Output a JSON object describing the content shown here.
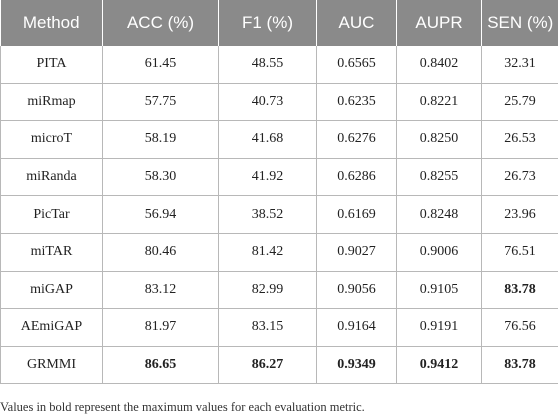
{
  "table": {
    "headers": [
      "Method",
      "ACC (%)",
      "F1 (%)",
      "AUC",
      "AUPR",
      "SEN (%)"
    ],
    "rows": [
      {
        "cells": [
          "PITA",
          "61.45",
          "48.55",
          "0.6565",
          "0.8402",
          "32.31"
        ],
        "bold": [
          false,
          false,
          false,
          false,
          false,
          false
        ]
      },
      {
        "cells": [
          "miRmap",
          "57.75",
          "40.73",
          "0.6235",
          "0.8221",
          "25.79"
        ],
        "bold": [
          false,
          false,
          false,
          false,
          false,
          false
        ]
      },
      {
        "cells": [
          "microT",
          "58.19",
          "41.68",
          "0.6276",
          "0.8250",
          "26.53"
        ],
        "bold": [
          false,
          false,
          false,
          false,
          false,
          false
        ]
      },
      {
        "cells": [
          "miRanda",
          "58.30",
          "41.92",
          "0.6286",
          "0.8255",
          "26.73"
        ],
        "bold": [
          false,
          false,
          false,
          false,
          false,
          false
        ]
      },
      {
        "cells": [
          "PicTar",
          "56.94",
          "38.52",
          "0.6169",
          "0.8248",
          "23.96"
        ],
        "bold": [
          false,
          false,
          false,
          false,
          false,
          false
        ]
      },
      {
        "cells": [
          "miTAR",
          "80.46",
          "81.42",
          "0.9027",
          "0.9006",
          "76.51"
        ],
        "bold": [
          false,
          false,
          false,
          false,
          false,
          false
        ]
      },
      {
        "cells": [
          "miGAP",
          "83.12",
          "82.99",
          "0.9056",
          "0.9105",
          "83.78"
        ],
        "bold": [
          false,
          false,
          false,
          false,
          false,
          true
        ]
      },
      {
        "cells": [
          "AEmiGAP",
          "81.97",
          "83.15",
          "0.9164",
          "0.9191",
          "76.56"
        ],
        "bold": [
          false,
          false,
          false,
          false,
          false,
          false
        ]
      },
      {
        "cells": [
          "GRMMI",
          "86.65",
          "86.27",
          "0.9349",
          "0.9412",
          "83.78"
        ],
        "bold": [
          false,
          true,
          true,
          true,
          true,
          true
        ]
      }
    ]
  },
  "footnote": "Values in bold represent the maximum values for each evaluation metric.",
  "colors": {
    "header_bg": "#8a8a8a",
    "header_text": "#ffffff",
    "grid": "#b8b8b8"
  }
}
